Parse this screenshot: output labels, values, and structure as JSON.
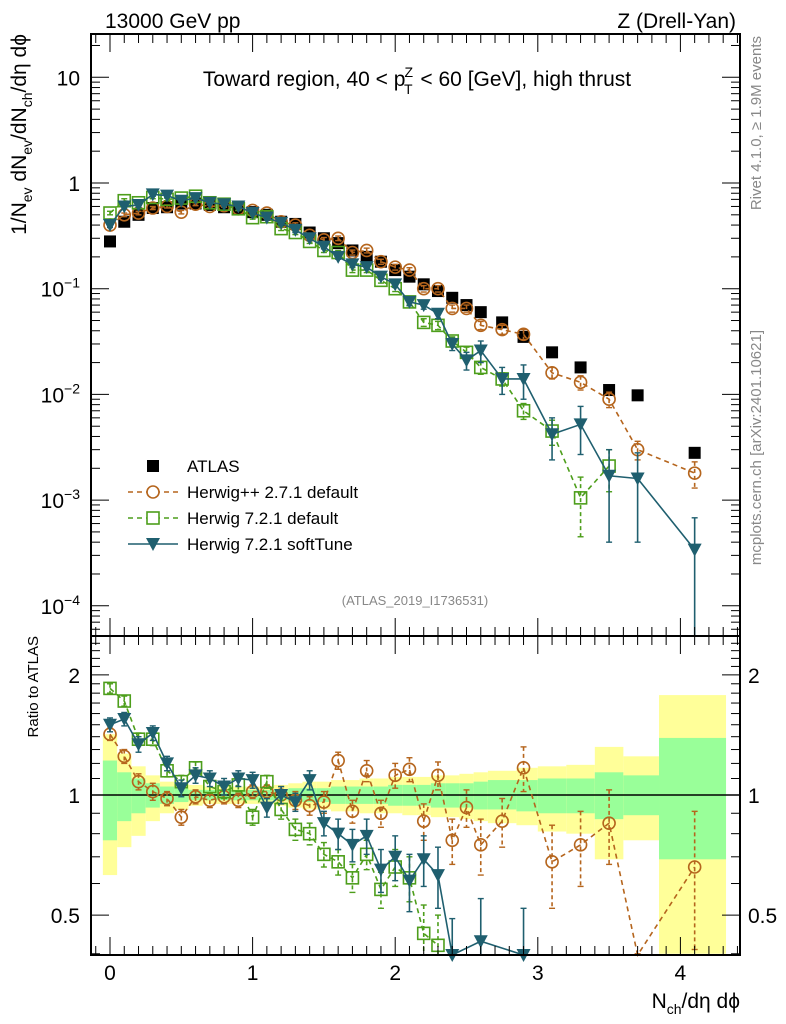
{
  "header": {
    "left": "13000 GeV pp",
    "right": "Z (Drell-Yan)"
  },
  "side_labels": {
    "rivet": "Rivet 4.1.0, ≥ 1.9M events",
    "mcplots": "mcplots.cern.ch [arXiv:2401.10621]"
  },
  "chart_data": [
    {
      "type": "scatter",
      "panel": "main",
      "title": "Toward region, 40 < p_T^Z < 60 [GeV], high thrust",
      "analysis_id": "(ATLAS_2019_I1736531)",
      "xlabel": "N_ch/dη dϕ",
      "ylabel": "1/N_ev dN_ev/dN_ch/dη dϕ",
      "yscale": "log",
      "xlim": [
        -0.13,
        4.42
      ],
      "ylim": [
        5.5e-05,
        26
      ],
      "x_ticks": [
        "0",
        "1",
        "2",
        "3",
        "4"
      ],
      "y_ticks": [
        {
          "value": 10,
          "label": "10"
        },
        {
          "value": 1,
          "label": "1"
        },
        {
          "value": 0.1,
          "label": "10^-1"
        },
        {
          "value": 0.01,
          "label": "10^-2"
        },
        {
          "value": 0.001,
          "label": "10^-3"
        },
        {
          "value": 0.0001,
          "label": "10^-4"
        }
      ],
      "legend_position": "bottom-left",
      "x": [
        0,
        0.1,
        0.2,
        0.3,
        0.4,
        0.5,
        0.6,
        0.7,
        0.8,
        0.9,
        1.0,
        1.1,
        1.2,
        1.3,
        1.4,
        1.5,
        1.6,
        1.7,
        1.8,
        1.9,
        2.0,
        2.1,
        2.2,
        2.3,
        2.4,
        2.5,
        2.6,
        2.75,
        2.9,
        3.1,
        3.3,
        3.5,
        3.7,
        4.1
      ],
      "series": [
        {
          "name": "ATLAS",
          "style": "data",
          "color": "#000000",
          "values": [
            0.28,
            0.43,
            0.5,
            0.58,
            0.59,
            0.64,
            0.64,
            0.62,
            0.59,
            0.58,
            0.53,
            0.5,
            0.43,
            0.41,
            0.34,
            0.3,
            0.27,
            0.23,
            0.2,
            0.18,
            0.15,
            0.13,
            0.11,
            0.095,
            0.082,
            0.07,
            0.06,
            0.048,
            0.035,
            0.025,
            0.018,
            0.011,
            0.0098,
            0.0028
          ]
        },
        {
          "name": "Herwig++ 2.7.1 default",
          "style": "dashed-circle",
          "color": "#b5651d",
          "values": [
            0.4,
            0.5,
            0.52,
            0.58,
            0.6,
            0.53,
            0.63,
            0.6,
            0.61,
            0.57,
            0.55,
            0.52,
            0.43,
            0.4,
            0.32,
            0.29,
            0.3,
            0.22,
            0.23,
            0.18,
            0.16,
            0.15,
            0.1,
            0.1,
            0.065,
            0.065,
            0.045,
            0.041,
            0.037,
            0.016,
            0.013,
            0.009,
            0.003,
            0.0018
          ],
          "errors": [
            0.02,
            0.02,
            0.02,
            0.02,
            0.02,
            0.02,
            0.02,
            0.02,
            0.02,
            0.02,
            0.02,
            0.02,
            0.02,
            0.02,
            0.015,
            0.015,
            0.015,
            0.012,
            0.012,
            0.01,
            0.01,
            0.008,
            0.007,
            0.007,
            0.005,
            0.005,
            0.004,
            0.004,
            0.004,
            0.002,
            0.002,
            0.0015,
            0.0006,
            0.0005
          ]
        },
        {
          "name": "Herwig 7.2.1 default",
          "style": "dashed-square",
          "color": "#4d9e1b",
          "values": [
            0.52,
            0.68,
            0.65,
            0.73,
            0.7,
            0.72,
            0.75,
            0.65,
            0.63,
            0.57,
            0.47,
            0.48,
            0.37,
            0.34,
            0.28,
            0.23,
            0.22,
            0.15,
            0.15,
            0.12,
            0.1,
            0.075,
            0.048,
            0.045,
            0.032,
            0.025,
            0.018,
            0.014,
            0.007,
            0.0045,
            0.00105,
            0.0021,
            null,
            null
          ],
          "errors": [
            0.02,
            0.03,
            0.02,
            0.02,
            0.02,
            0.02,
            0.02,
            0.02,
            0.02,
            0.02,
            0.015,
            0.015,
            0.015,
            0.015,
            0.012,
            0.01,
            0.01,
            0.008,
            0.008,
            0.007,
            0.006,
            0.005,
            0.004,
            0.004,
            0.003,
            0.003,
            0.0025,
            0.002,
            0.0012,
            0.0012,
            0.0006,
            0.0009,
            null,
            null
          ]
        },
        {
          "name": "Herwig 7.2.1 softTune",
          "style": "solid-triangle",
          "color": "#1f5f6f",
          "values": [
            0.4,
            0.6,
            0.62,
            0.78,
            0.76,
            0.68,
            0.72,
            0.65,
            0.63,
            0.6,
            0.52,
            0.47,
            0.42,
            0.36,
            0.3,
            0.25,
            0.2,
            0.17,
            0.16,
            0.13,
            0.11,
            0.075,
            0.07,
            0.058,
            0.03,
            0.021,
            0.026,
            0.014,
            0.014,
            0.0042,
            0.0052,
            0.0017,
            0.0016,
            0.00034
          ],
          "errors": [
            0.02,
            0.03,
            0.03,
            0.03,
            0.03,
            0.02,
            0.02,
            0.02,
            0.02,
            0.02,
            0.02,
            0.02,
            0.02,
            0.02,
            0.015,
            0.012,
            0.01,
            0.009,
            0.009,
            0.008,
            0.007,
            0.006,
            0.006,
            0.006,
            0.004,
            0.004,
            0.006,
            0.004,
            0.005,
            0.0018,
            0.0025,
            0.0013,
            0.0012,
            0.00034
          ]
        }
      ]
    },
    {
      "type": "scatter",
      "panel": "ratio",
      "ylabel": "Ratio to ATLAS",
      "xlabel": "N_ch/dη dϕ",
      "yscale": "log",
      "ylim": [
        0.4,
        2.5
      ],
      "y_ticks": [
        {
          "value": 0.5,
          "label": "0.5"
        },
        {
          "value": 1,
          "label": "1"
        },
        {
          "value": 2,
          "label": "2"
        }
      ],
      "x": [
        0,
        0.1,
        0.2,
        0.3,
        0.4,
        0.5,
        0.6,
        0.7,
        0.8,
        0.9,
        1.0,
        1.1,
        1.2,
        1.3,
        1.4,
        1.5,
        1.6,
        1.7,
        1.8,
        1.9,
        2.0,
        2.1,
        2.2,
        2.3,
        2.4,
        2.5,
        2.6,
        2.75,
        2.9,
        3.1,
        3.3,
        3.5,
        3.7,
        4.1
      ],
      "bands": {
        "edges": [
          -0.05,
          0.05,
          0.15,
          0.25,
          0.35,
          0.45,
          0.55,
          0.65,
          0.75,
          0.85,
          0.95,
          1.05,
          1.15,
          1.25,
          1.35,
          1.45,
          1.55,
          1.65,
          1.75,
          1.85,
          1.95,
          2.05,
          2.15,
          2.25,
          2.35,
          2.45,
          2.55,
          2.65,
          2.85,
          3.0,
          3.2,
          3.4,
          3.6,
          3.85,
          4.32
        ],
        "inner_color": "#99ff99",
        "outer_color": "#ffff99",
        "inner_lo": [
          0.77,
          0.86,
          0.9,
          0.93,
          0.95,
          0.96,
          0.97,
          0.97,
          0.97,
          0.97,
          0.97,
          0.97,
          0.97,
          0.96,
          0.96,
          0.96,
          0.95,
          0.95,
          0.95,
          0.95,
          0.94,
          0.94,
          0.94,
          0.93,
          0.93,
          0.93,
          0.92,
          0.92,
          0.91,
          0.9,
          0.9,
          0.87,
          0.89,
          0.69
        ],
        "inner_hi": [
          1.22,
          1.14,
          1.1,
          1.07,
          1.05,
          1.04,
          1.03,
          1.03,
          1.03,
          1.03,
          1.03,
          1.03,
          1.03,
          1.04,
          1.04,
          1.04,
          1.05,
          1.05,
          1.05,
          1.05,
          1.06,
          1.06,
          1.06,
          1.07,
          1.07,
          1.07,
          1.08,
          1.09,
          1.09,
          1.1,
          1.1,
          1.14,
          1.12,
          1.39
        ],
        "outer_lo": [
          0.63,
          0.74,
          0.79,
          0.86,
          0.9,
          0.92,
          0.94,
          0.95,
          0.95,
          0.95,
          0.95,
          0.95,
          0.94,
          0.93,
          0.92,
          0.92,
          0.91,
          0.91,
          0.9,
          0.9,
          0.9,
          0.89,
          0.89,
          0.88,
          0.88,
          0.87,
          0.86,
          0.85,
          0.84,
          0.81,
          0.8,
          0.69,
          0.77,
          0.4
        ],
        "outer_hi": [
          1.42,
          1.27,
          1.18,
          1.12,
          1.08,
          1.07,
          1.06,
          1.05,
          1.05,
          1.05,
          1.05,
          1.05,
          1.06,
          1.07,
          1.08,
          1.08,
          1.09,
          1.09,
          1.1,
          1.1,
          1.11,
          1.11,
          1.11,
          1.12,
          1.12,
          1.13,
          1.14,
          1.15,
          1.17,
          1.18,
          1.19,
          1.32,
          1.25,
          1.78
        ]
      },
      "series": [
        {
          "name": "Herwig++ 2.7.1 default",
          "color": "#b5651d",
          "style": "dashed-circle",
          "values": [
            1.42,
            1.25,
            1.08,
            1.02,
            0.98,
            0.88,
            0.99,
            0.97,
            0.99,
            0.97,
            1.02,
            1.02,
            1.0,
            0.97,
            0.94,
            0.96,
            1.22,
            0.91,
            1.15,
            0.9,
            1.12,
            1.16,
            0.86,
            1.12,
            0.77,
            0.93,
            0.75,
            0.86,
            1.17,
            0.68,
            0.75,
            0.85,
            0.3,
            0.66
          ],
          "errors": [
            0.05,
            0.05,
            0.05,
            0.05,
            0.04,
            0.04,
            0.04,
            0.04,
            0.04,
            0.04,
            0.04,
            0.04,
            0.05,
            0.05,
            0.05,
            0.06,
            0.06,
            0.06,
            0.07,
            0.07,
            0.08,
            0.08,
            0.09,
            0.09,
            0.1,
            0.1,
            0.12,
            0.12,
            0.15,
            0.16,
            0.16,
            0.18,
            0.1,
            0.25
          ]
        },
        {
          "name": "Herwig 7.2.1 default",
          "color": "#4d9e1b",
          "style": "dashed-square",
          "values": [
            1.85,
            1.72,
            1.38,
            1.38,
            1.15,
            1.08,
            1.17,
            1.05,
            1.02,
            1.06,
            0.88,
            1.08,
            0.92,
            0.82,
            0.8,
            0.71,
            0.68,
            0.62,
            0.71,
            0.58,
            0.66,
            0.62,
            0.45,
            0.42,
            null,
            null,
            null,
            null,
            null,
            null,
            null,
            null,
            null,
            null
          ],
          "errors": [
            0.05,
            0.05,
            0.05,
            0.05,
            0.04,
            0.04,
            0.04,
            0.04,
            0.04,
            0.04,
            0.04,
            0.04,
            0.05,
            0.05,
            0.05,
            0.05,
            0.05,
            0.05,
            0.06,
            0.06,
            0.07,
            0.08,
            0.08,
            0.08,
            null,
            null,
            null,
            null,
            null,
            null,
            null,
            null,
            null,
            null
          ]
        },
        {
          "name": "Herwig 7.2.1 softTune",
          "color": "#1f5f6f",
          "style": "solid-triangle",
          "values": [
            1.5,
            1.55,
            1.34,
            1.43,
            1.2,
            1.04,
            1.12,
            1.1,
            1.05,
            1.1,
            1.09,
            0.93,
            1.0,
            0.96,
            1.09,
            0.85,
            0.8,
            0.75,
            0.79,
            0.65,
            0.7,
            0.61,
            0.69,
            0.63,
            0.39,
            null,
            0.43,
            null,
            0.39,
            null,
            null,
            null,
            null,
            null
          ],
          "errors": [
            0.06,
            0.06,
            0.06,
            0.06,
            0.05,
            0.05,
            0.05,
            0.05,
            0.05,
            0.05,
            0.05,
            0.05,
            0.05,
            0.05,
            0.06,
            0.06,
            0.07,
            0.07,
            0.08,
            0.08,
            0.09,
            0.1,
            0.1,
            0.11,
            0.1,
            null,
            0.12,
            null,
            0.13,
            null,
            null,
            null,
            null,
            null
          ]
        }
      ]
    }
  ]
}
